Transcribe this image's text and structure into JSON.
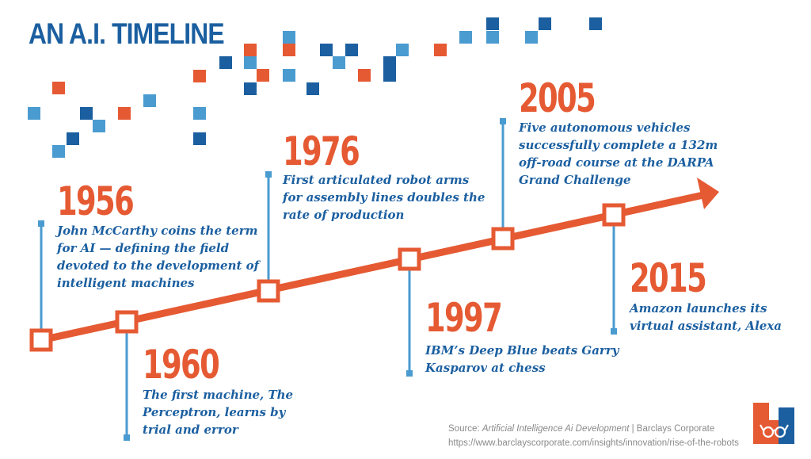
{
  "title": "AN A.I. TIMELINE",
  "events": [
    {
      "year": "1956",
      "lines": [
        "John McCarthy coins the term",
        "for AI — defining the field",
        "devoted to the development of",
        "intelligent machines"
      ]
    },
    {
      "year": "1960",
      "lines": [
        "The first machine, The",
        "Perceptron, learns by",
        "trial and error"
      ]
    },
    {
      "year": "1976",
      "lines": [
        "First articulated robot arms",
        "for assembly lines doubles the",
        "rate of production"
      ]
    },
    {
      "year": "1997",
      "lines": [
        "IBM’s Deep Blue beats Garry",
        "Kasparov at chess"
      ]
    },
    {
      "year": "2005",
      "lines": [
        "Five autonomous vehicles",
        "successfully complete a 132m",
        "off-road course at the DARPA",
        "Grand Challenge"
      ]
    },
    {
      "year": "2015",
      "lines": [
        "Amazon launches its",
        "virtual assistant, Alexa"
      ]
    }
  ],
  "source": {
    "prefix": "Source: ",
    "title": "Artificial Intelligence Ai Development",
    "separator": " | ",
    "publisher": "Barclays Corporate",
    "url": "https://www.barclayscorporate.com/insights/innovation/rise-of-the-robots"
  },
  "colors": {
    "orange": "#e55a33",
    "dark_blue": "#1b5fa0",
    "light_blue": "#4a9bd0",
    "gray": "#8a8a8a"
  },
  "logo": {
    "icon": "glasses-logo-icon"
  }
}
